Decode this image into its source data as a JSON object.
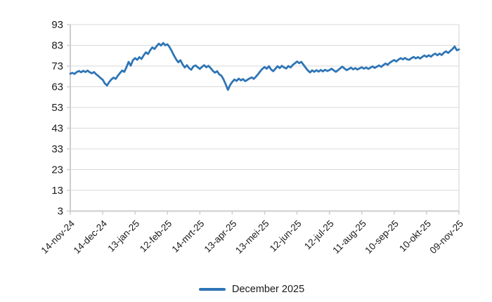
{
  "chart_data": {
    "type": "line",
    "title": "",
    "xlabel": "",
    "ylabel": "",
    "ylim": [
      3,
      93
    ],
    "ytick_step": 10,
    "ytick_labels": [
      "3",
      "13",
      "23",
      "33",
      "43",
      "53",
      "63",
      "73",
      "83",
      "93"
    ],
    "x_tick_labels": [
      "14-nov-24",
      "14-dec-24",
      "13-jan-25",
      "12-feb-25",
      "14-mrt-25",
      "13-apr-25",
      "13-mei-25",
      "12-jun-25",
      "12-jul-25",
      "11-aug-25",
      "10-sep-25",
      "10-okt-25",
      "09-nov-25"
    ],
    "grid": "horizontal",
    "legend_position": "bottom-center",
    "series": [
      {
        "name": "December 2025",
        "color": "#2E75B6",
        "values": [
          69.3,
          69.7,
          69.2,
          70.1,
          70.6,
          70.0,
          70.7,
          70.1,
          70.8,
          70.0,
          69.5,
          70.1,
          69.0,
          68.2,
          67.2,
          66.4,
          64.6,
          63.6,
          65.2,
          66.5,
          67.4,
          66.8,
          68.3,
          69.6,
          70.8,
          70.2,
          72.4,
          75.0,
          73.2,
          75.8,
          76.8,
          76.0,
          77.3,
          76.4,
          78.2,
          79.6,
          78.8,
          80.6,
          82.0,
          81.2,
          82.6,
          83.8,
          82.9,
          84.1,
          83.0,
          83.5,
          82.1,
          80.2,
          78.1,
          76.3,
          74.8,
          75.8,
          73.8,
          72.3,
          73.4,
          72.0,
          71.2,
          72.8,
          73.3,
          72.4,
          71.6,
          72.6,
          73.4,
          72.4,
          73.1,
          72.0,
          70.7,
          69.8,
          70.5,
          69.0,
          68.3,
          66.5,
          64.1,
          61.5,
          63.8,
          65.3,
          66.5,
          65.8,
          66.9,
          66.1,
          66.7,
          65.7,
          66.3,
          67.0,
          67.5,
          66.8,
          67.9,
          69.1,
          70.5,
          71.7,
          72.5,
          71.7,
          72.9,
          71.3,
          70.5,
          71.7,
          72.9,
          72.0,
          73.1,
          72.3,
          71.8,
          73.0,
          72.3,
          73.5,
          74.3,
          75.2,
          74.4,
          75.0,
          73.6,
          72.2,
          70.9,
          69.9,
          70.9,
          70.2,
          71.0,
          70.3,
          71.1,
          70.4,
          71.2,
          70.6,
          71.0,
          71.7,
          70.9,
          70.2,
          71.0,
          71.9,
          72.7,
          71.8,
          71.0,
          71.6,
          72.2,
          71.4,
          72.0,
          71.3,
          71.9,
          72.4,
          71.7,
          72.3,
          71.6,
          72.2,
          72.8,
          72.1,
          72.7,
          73.3,
          72.6,
          73.5,
          74.2,
          73.6,
          74.6,
          75.3,
          75.9,
          75.2,
          76.1,
          76.8,
          76.2,
          76.9,
          76.2,
          76.0,
          76.8,
          77.4,
          76.7,
          77.3,
          76.6,
          77.4,
          78.1,
          77.4,
          78.2,
          77.5,
          78.4,
          79.0,
          78.2,
          79.0,
          78.3,
          79.4,
          80.1,
          79.3,
          80.3,
          81.2,
          82.4,
          80.6,
          81.0
        ]
      }
    ]
  },
  "colors": {
    "series_blue": "#2E75B6",
    "gridline": "#D9D9D9",
    "axis": "#CDCDCD",
    "plot_border": "#D9D9D9",
    "tick_label": "#1a1a1a",
    "background": "#FFFFFF"
  },
  "legend": {
    "label": "December 2025"
  }
}
